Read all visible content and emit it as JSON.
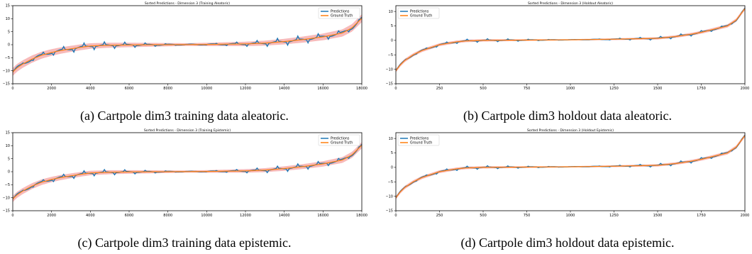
{
  "figure": {
    "colors": {
      "predictions": "#1f77b4",
      "ground_truth": "#ff7f0e",
      "uncertainty": "#f4a3a3"
    }
  },
  "chart_data": [
    {
      "type": "line",
      "title": "Sorted Predictions - Dimension 3 (Training Aleatoric)",
      "caption": "(a) Cartpole dim3 training data aleatoric.",
      "xlim": [
        0,
        18000
      ],
      "ylim": [
        -15,
        15
      ],
      "xticks": [
        0,
        2000,
        4000,
        6000,
        8000,
        10000,
        12000,
        14000,
        16000,
        18000
      ],
      "yticks": [
        -15,
        -10,
        -5,
        0,
        5,
        10,
        15
      ],
      "legend": {
        "position": "top-right",
        "entries": [
          "Predictions",
          "Ground Truth"
        ]
      },
      "series": [
        {
          "name": "Ground Truth",
          "x": [
            0,
            200,
            500,
            1000,
            1500,
            2000,
            2500,
            3000,
            3500,
            4000,
            5000,
            6000,
            8000,
            10000,
            12000,
            13000,
            14000,
            15000,
            16000,
            17000,
            17500,
            18000
          ],
          "y": [
            -10.5,
            -9,
            -7.5,
            -5.5,
            -4,
            -3,
            -2.2,
            -1.6,
            -1.0,
            -0.5,
            -0.2,
            -0.1,
            0.0,
            0.1,
            0.3,
            0.6,
            1.2,
            2.0,
            3.0,
            4.5,
            6.5,
            10.2
          ]
        },
        {
          "name": "Predictions",
          "x": [
            0,
            200,
            500,
            1000,
            1500,
            2000,
            2500,
            3000,
            3500,
            4000,
            5000,
            6000,
            8000,
            10000,
            12000,
            13000,
            14000,
            15000,
            16000,
            17000,
            17500,
            18000
          ],
          "y": [
            -10.5,
            -9,
            -7.5,
            -5.5,
            -4,
            -3,
            -2.2,
            -1.6,
            -1.0,
            -0.5,
            -0.2,
            -0.1,
            0.0,
            0.1,
            0.3,
            0.6,
            1.2,
            2.0,
            3.0,
            4.5,
            6.5,
            10.2
          ]
        }
      ],
      "uncertainty_band": 1.5
    },
    {
      "type": "line",
      "title": "Sorted Predictions - Dimension 3 (Holdout Aleatoric)",
      "caption": "(b) Cartpole dim3 holdout data aleatoric.",
      "xlim": [
        0,
        2000
      ],
      "ylim": [
        -15,
        12
      ],
      "xticks": [
        0,
        250,
        500,
        750,
        1000,
        1250,
        1500,
        1750,
        2000
      ],
      "yticks": [
        -15,
        -10,
        -5,
        0,
        5,
        10
      ],
      "legend": {
        "position": "top-left",
        "entries": [
          "Predictions",
          "Ground Truth"
        ]
      },
      "series": [
        {
          "name": "Ground Truth",
          "x": [
            0,
            25,
            50,
            100,
            150,
            200,
            250,
            300,
            350,
            400,
            500,
            750,
            1000,
            1250,
            1500,
            1600,
            1700,
            1750,
            1800,
            1900,
            1950,
            2000
          ],
          "y": [
            -10.5,
            -8.5,
            -7,
            -5,
            -3.5,
            -2.5,
            -1.5,
            -1.0,
            -0.5,
            -0.2,
            0.0,
            0.1,
            0.2,
            0.4,
            0.7,
            1.3,
            2.2,
            2.8,
            3.5,
            5.0,
            7.0,
            11.0
          ]
        },
        {
          "name": "Predictions",
          "x": [
            0,
            25,
            50,
            100,
            150,
            200,
            250,
            300,
            350,
            400,
            500,
            750,
            1000,
            1250,
            1500,
            1600,
            1700,
            1750,
            1800,
            1900,
            1950,
            2000
          ],
          "y": [
            -10.5,
            -8.5,
            -7,
            -5,
            -3.5,
            -2.5,
            -1.5,
            -1.0,
            -0.5,
            -0.2,
            0.0,
            0.1,
            0.2,
            0.4,
            0.7,
            1.3,
            2.2,
            2.8,
            3.5,
            5.0,
            7.0,
            11.0
          ]
        }
      ],
      "uncertainty_band": 0.6
    },
    {
      "type": "line",
      "title": "Sorted Predictions - Dimension 3 (Training Epistemic)",
      "caption": "(c) Cartpole dim3 training data epistemic.",
      "xlim": [
        0,
        18000
      ],
      "ylim": [
        -15,
        15
      ],
      "xticks": [
        0,
        2000,
        4000,
        6000,
        8000,
        10000,
        12000,
        14000,
        16000,
        18000
      ],
      "yticks": [
        -15,
        -10,
        -5,
        0,
        5,
        10,
        15
      ],
      "legend": {
        "position": "top-right",
        "entries": [
          "Predictions",
          "Ground Truth"
        ]
      },
      "series": [
        {
          "name": "Ground Truth",
          "x": [
            0,
            200,
            500,
            1000,
            1500,
            2000,
            2500,
            3000,
            3500,
            4000,
            5000,
            6000,
            8000,
            10000,
            12000,
            13000,
            14000,
            15000,
            16000,
            17000,
            17500,
            18000
          ],
          "y": [
            -10.5,
            -9,
            -7.5,
            -5.5,
            -4,
            -3,
            -2.2,
            -1.6,
            -1.0,
            -0.5,
            -0.2,
            -0.1,
            0.0,
            0.1,
            0.3,
            0.6,
            1.2,
            2.0,
            3.0,
            4.5,
            6.5,
            10.2
          ]
        },
        {
          "name": "Predictions",
          "x": [
            0,
            200,
            500,
            1000,
            1500,
            2000,
            2500,
            3000,
            3500,
            4000,
            5000,
            6000,
            8000,
            10000,
            12000,
            13000,
            14000,
            15000,
            16000,
            17000,
            17500,
            18000
          ],
          "y": [
            -10.5,
            -9,
            -7.5,
            -5.5,
            -4,
            -3,
            -2.2,
            -1.6,
            -1.0,
            -0.5,
            -0.2,
            -0.1,
            0.0,
            0.1,
            0.3,
            0.6,
            1.2,
            2.0,
            3.0,
            4.5,
            6.5,
            10.2
          ]
        }
      ],
      "uncertainty_band": 1.2
    },
    {
      "type": "line",
      "title": "Sorted Predictions - Dimension 3 (Holdout Epistemic)",
      "caption": "(d) Cartpole dim3 holdout data epistemic.",
      "xlim": [
        0,
        2000
      ],
      "ylim": [
        -15,
        12
      ],
      "xticks": [
        0,
        250,
        500,
        750,
        1000,
        1250,
        1500,
        1750,
        2000
      ],
      "yticks": [
        -15,
        -10,
        -5,
        0,
        5,
        10
      ],
      "legend": {
        "position": "top-left",
        "entries": [
          "Predictions",
          "Ground Truth"
        ]
      },
      "series": [
        {
          "name": "Ground Truth",
          "x": [
            0,
            25,
            50,
            100,
            150,
            200,
            250,
            300,
            350,
            400,
            500,
            750,
            1000,
            1250,
            1500,
            1600,
            1700,
            1750,
            1800,
            1900,
            1950,
            2000
          ],
          "y": [
            -10.5,
            -8.5,
            -7,
            -5,
            -3.5,
            -2.5,
            -1.5,
            -1.0,
            -0.5,
            -0.2,
            0.0,
            0.1,
            0.2,
            0.4,
            0.7,
            1.3,
            2.2,
            2.8,
            3.5,
            5.0,
            7.0,
            11.0
          ]
        },
        {
          "name": "Predictions",
          "x": [
            0,
            25,
            50,
            100,
            150,
            200,
            250,
            300,
            350,
            400,
            500,
            750,
            1000,
            1250,
            1500,
            1600,
            1700,
            1750,
            1800,
            1900,
            1950,
            2000
          ],
          "y": [
            -10.5,
            -8.5,
            -7,
            -5,
            -3.5,
            -2.5,
            -1.5,
            -1.0,
            -0.5,
            -0.2,
            0.0,
            0.1,
            0.2,
            0.4,
            0.7,
            1.3,
            2.2,
            2.8,
            3.5,
            5.0,
            7.0,
            11.0
          ]
        }
      ],
      "uncertainty_band": 0.6
    }
  ]
}
